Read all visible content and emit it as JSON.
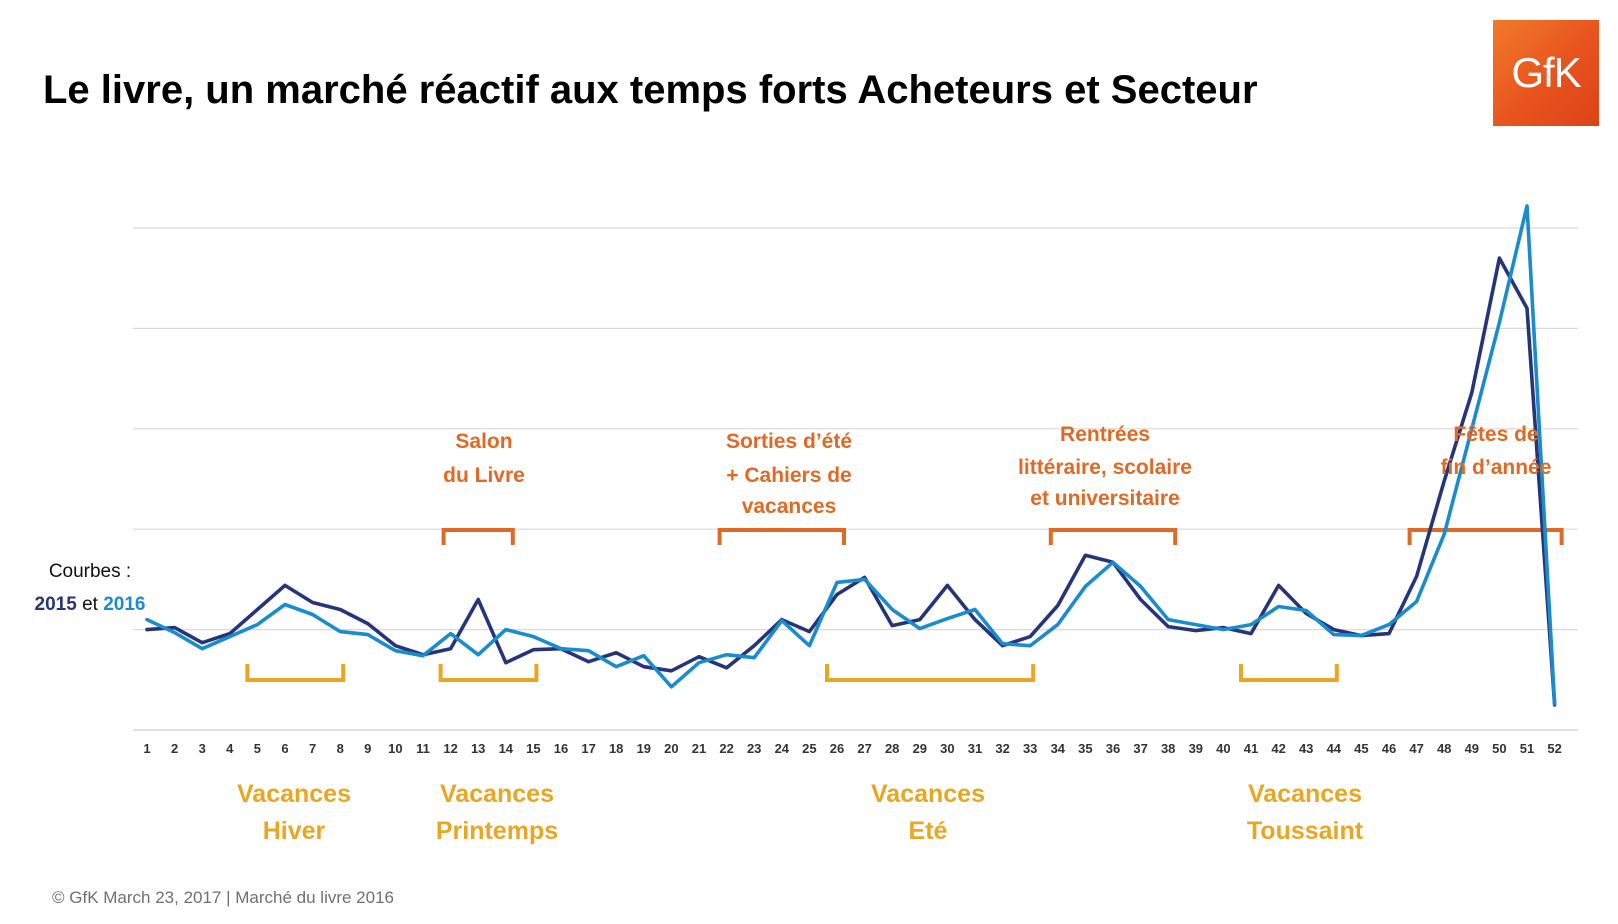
{
  "title": "Le livre, un marché réactif aux temps forts Acheteurs et Secteur",
  "logo_text": "GfK",
  "footer": "© GfK March 23, 2017 | Marché du livre 2016",
  "legend": {
    "label": "Courbes :",
    "year_a": "2015",
    "connector": "et",
    "year_b": "2016"
  },
  "colors": {
    "series_2015": "#26357a",
    "series_2016": "#1a8ccc",
    "events": "#e06a25",
    "holidays": "#e8a722",
    "grid": "#d9d9d9"
  },
  "chart_data": {
    "type": "line",
    "x": [
      1,
      2,
      3,
      4,
      5,
      6,
      7,
      8,
      9,
      10,
      11,
      12,
      13,
      14,
      15,
      16,
      17,
      18,
      19,
      20,
      21,
      22,
      23,
      24,
      25,
      26,
      27,
      28,
      29,
      30,
      31,
      32,
      33,
      34,
      35,
      36,
      37,
      38,
      39,
      40,
      41,
      42,
      43,
      44,
      45,
      46,
      47,
      48,
      49,
      50,
      51,
      52
    ],
    "series": [
      {
        "name": "2015",
        "values": [
          1.0,
          1.02,
          0.87,
          0.96,
          1.2,
          1.44,
          1.27,
          1.2,
          1.06,
          0.84,
          0.75,
          0.81,
          1.3,
          0.67,
          0.8,
          0.81,
          0.68,
          0.77,
          0.63,
          0.59,
          0.73,
          0.62,
          0.84,
          1.1,
          0.98,
          1.35,
          1.52,
          1.04,
          1.1,
          1.44,
          1.1,
          0.84,
          0.93,
          1.24,
          1.74,
          1.67,
          1.3,
          1.03,
          0.99,
          1.02,
          0.96,
          1.44,
          1.16,
          1.0,
          0.94,
          0.96,
          1.53,
          2.48,
          3.36,
          4.7,
          4.2,
          0.25
        ]
      },
      {
        "name": "2016",
        "values": [
          1.1,
          0.97,
          0.81,
          0.93,
          1.05,
          1.25,
          1.15,
          0.98,
          0.95,
          0.79,
          0.74,
          0.96,
          0.75,
          1.0,
          0.93,
          0.81,
          0.79,
          0.63,
          0.74,
          0.43,
          0.67,
          0.75,
          0.72,
          1.09,
          0.84,
          1.47,
          1.5,
          1.2,
          1.01,
          1.11,
          1.2,
          0.86,
          0.84,
          1.05,
          1.43,
          1.67,
          1.43,
          1.1,
          1.05,
          1.0,
          1.05,
          1.23,
          1.19,
          0.95,
          0.94,
          1.05,
          1.28,
          1.95,
          3.0,
          4.06,
          5.22,
          0.26
        ]
      }
    ],
    "ylim": [
      0,
      5.0
    ],
    "y_grid_step": 1,
    "grid": true,
    "y_tick_labels_shown": false,
    "events": [
      {
        "lines": [
          "Salon",
          "du Livre"
        ],
        "from_week": 12,
        "to_week": 14
      },
      {
        "lines": [
          "Sorties d’été",
          "+ Cahiers de",
          "vacances"
        ],
        "from_week": 22,
        "to_week": 26
      },
      {
        "lines": [
          "Rentrées",
          "littéraire, scolaire",
          "et universitaire"
        ],
        "from_week": 34,
        "to_week": 38
      },
      {
        "lines": [
          "Fêtes de",
          "fin d’année"
        ],
        "from_week": 47,
        "to_week": 52
      }
    ],
    "holidays": [
      {
        "lines": [
          "Vacances",
          "Hiver"
        ],
        "from_week": 5,
        "to_week": 8
      },
      {
        "lines": [
          "Vacances",
          "Printemps"
        ],
        "from_week": 12,
        "to_week": 15
      },
      {
        "lines": [
          "Vacances",
          "Eté"
        ],
        "from_week": 26,
        "to_week": 33
      },
      {
        "lines": [
          "Vacances",
          "Toussaint"
        ],
        "from_week": 41,
        "to_week": 44
      }
    ]
  }
}
